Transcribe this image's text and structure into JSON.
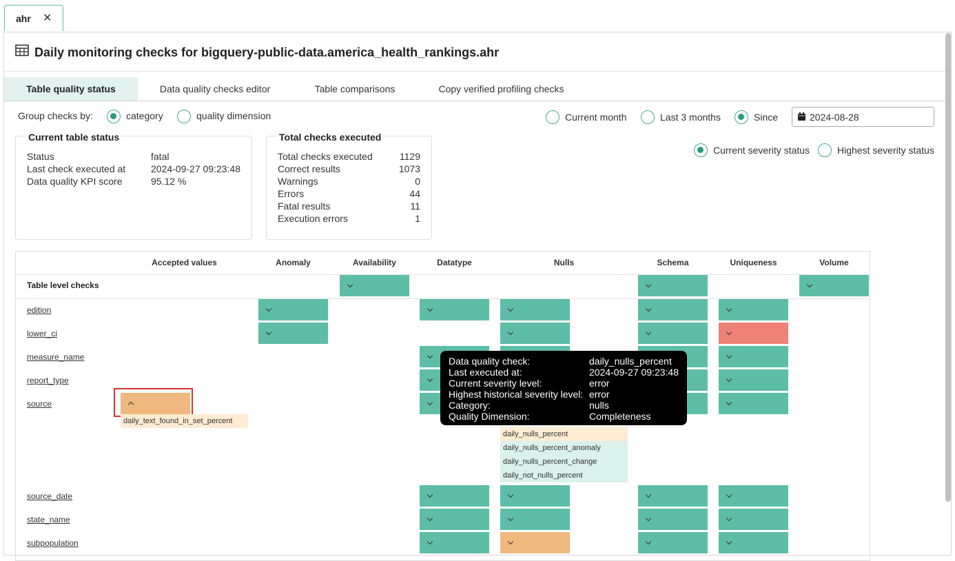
{
  "doc_tab": {
    "label": "ahr",
    "close": "✕"
  },
  "title": "Daily monitoring checks for bigquery-public-data.america_health_rankings.ahr",
  "subtabs": [
    "Table quality status",
    "Data quality checks editor",
    "Table comparisons",
    "Copy verified profiling checks"
  ],
  "group_by": {
    "label": "Group checks by:",
    "options": [
      "category",
      "quality dimension"
    ],
    "selected": "category"
  },
  "period": {
    "options": [
      "Current month",
      "Last 3 months",
      "Since"
    ],
    "selected": "Since",
    "date": "2024-08-28"
  },
  "severity": {
    "options": [
      "Current severity status",
      "Highest severity status"
    ],
    "selected": "Current severity status"
  },
  "current_status": {
    "title": "Current table status",
    "rows": [
      {
        "k": "Status",
        "v": "fatal"
      },
      {
        "k": "Last check executed at",
        "v": "2024-09-27 09:23:48"
      },
      {
        "k": "Data quality KPI score",
        "v": "95.12 %"
      }
    ]
  },
  "totals": {
    "title": "Total checks executed",
    "rows": [
      {
        "k": "Total checks executed",
        "v": "1129"
      },
      {
        "k": "Correct results",
        "v": "1073"
      },
      {
        "k": "Warnings",
        "v": "0"
      },
      {
        "k": "Errors",
        "v": "44"
      },
      {
        "k": "Fatal results",
        "v": "11"
      },
      {
        "k": "Execution errors",
        "v": "1"
      }
    ]
  },
  "columns": [
    "Accepted values",
    "Anomaly",
    "Availability",
    "Datatype",
    "Nulls",
    "Schema",
    "Uniqueness",
    "Volume"
  ],
  "table_level_label": "Table level checks",
  "rows": [
    "edition",
    "lower_ci",
    "measure_name",
    "report_type",
    "source",
    "source_date",
    "state_name",
    "subpopulation"
  ],
  "source_accepted_checks": [
    "daily_text_found_in_set_percent"
  ],
  "nulls_checks": [
    "daily_nulls_percent",
    "daily_nulls_percent_anomaly",
    "daily_nulls_percent_change",
    "daily_not_nulls_percent"
  ],
  "tooltip": {
    "rows": [
      {
        "k": "Data quality check:",
        "v": "daily_nulls_percent"
      },
      {
        "k": "Last executed at:",
        "v": "2024-09-27 09:23:48"
      },
      {
        "k": "Current severity level:",
        "v": "error"
      },
      {
        "k": "Highest historical severity level:",
        "v": "error"
      },
      {
        "k": "Category:",
        "v": "nulls"
      },
      {
        "k": "Quality Dimension:",
        "v": "Completeness"
      }
    ]
  },
  "colors": {
    "valid": "#5dbda7",
    "error": "#ef8277",
    "warning": "#efb87f",
    "accent": "#2a9a7c"
  }
}
